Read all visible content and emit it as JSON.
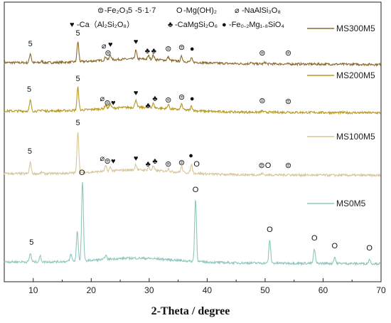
{
  "chart_data": {
    "type": "line",
    "xlabel": "2-Theta / degree",
    "ylabel": "",
    "xlim": [
      5,
      70
    ],
    "x_ticks": [
      10,
      20,
      30,
      40,
      50,
      60,
      70
    ],
    "grid": false,
    "phase_key": [
      {
        "symbol": "⊜",
        "label": "-Fe₂O₃"
      },
      {
        "symbol": "5",
        "label": "-5·1·7"
      },
      {
        "symbol": "O",
        "label": "-Mg(OH)₂"
      },
      {
        "symbol": "⌀",
        "label": "-NaAlSi₃O₈"
      },
      {
        "symbol": "♥",
        "label": "-Ca（Al₂Si₂O₈）"
      },
      {
        "symbol": "♣",
        "label": "-CaMgSi₂O₆"
      },
      {
        "symbol": "●",
        "label": "-Fe₀.₂Mg₁.₈SiO₄"
      }
    ],
    "series": [
      {
        "name": "MS300M5",
        "color": "#8b6a2b",
        "baseline": 88,
        "peaks": [
          [
            9.5,
            13
          ],
          [
            11.5,
            2
          ],
          [
            17.7,
            28
          ],
          [
            22.5,
            5
          ],
          [
            23.3,
            7
          ],
          [
            27.7,
            12
          ],
          [
            29.9,
            5
          ],
          [
            30.7,
            6
          ],
          [
            33.3,
            5
          ],
          [
            35.6,
            7
          ],
          [
            37.3,
            5
          ],
          [
            47.5,
            2
          ],
          [
            50,
            2
          ]
        ]
      },
      {
        "name": "MS200M5",
        "color": "#b69a22",
        "baseline": 156,
        "peaks": [
          [
            9.5,
            15
          ],
          [
            11.5,
            2
          ],
          [
            17.7,
            32
          ],
          [
            22.5,
            5
          ],
          [
            23.3,
            6
          ],
          [
            27.7,
            11
          ],
          [
            29.9,
            4
          ],
          [
            30.7,
            6
          ],
          [
            33.3,
            6
          ],
          [
            35.6,
            8
          ],
          [
            37.3,
            6
          ],
          [
            49.5,
            2
          ],
          [
            54,
            1
          ]
        ]
      },
      {
        "name": "MS100M5",
        "color": "#d8c69a",
        "baseline": 244,
        "peaks": [
          [
            9.5,
            16
          ],
          [
            11.5,
            2
          ],
          [
            17.7,
            58
          ],
          [
            22.5,
            7
          ],
          [
            23.3,
            5
          ],
          [
            27.7,
            8
          ],
          [
            29.9,
            4
          ],
          [
            30.7,
            6
          ],
          [
            33.3,
            4
          ],
          [
            35.6,
            8
          ],
          [
            37.3,
            12
          ],
          [
            49.5,
            2
          ],
          [
            54,
            1
          ]
        ]
      },
      {
        "name": "MS0M5",
        "color": "#8fc7bd",
        "baseline": 368,
        "peaks": [
          [
            9.5,
            12
          ],
          [
            11.2,
            8
          ],
          [
            16.5,
            10
          ],
          [
            17.6,
            42
          ],
          [
            18.5,
            112
          ],
          [
            22.5,
            6
          ],
          [
            38,
            88
          ],
          [
            50.8,
            32
          ],
          [
            58.5,
            20
          ],
          [
            62,
            9
          ],
          [
            68,
            6
          ]
        ]
      }
    ],
    "legend": [
      {
        "label": "MS300M5",
        "color": "#8b6a2b"
      },
      {
        "label": "MS200M5",
        "color": "#b69a22"
      },
      {
        "label": "MS100M5",
        "color": "#d8c69a"
      },
      {
        "label": "MS0M5",
        "color": "#8fc7bd"
      }
    ],
    "annotations": [
      {
        "s": "5",
        "x": 9.5,
        "series": "MS300M5",
        "dy": 15
      },
      {
        "s": "5",
        "x": 17.7,
        "series": "MS300M5",
        "dy": 30
      },
      {
        "s": "⌀",
        "x": 22.2,
        "series": "MS300M5",
        "dy": 12
      },
      {
        "s": "♥",
        "x": 23.3,
        "series": "MS300M5",
        "dy": 14
      },
      {
        "s": "⊜",
        "x": 22.9,
        "series": "MS300M5",
        "dy": 2
      },
      {
        "s": "♥",
        "x": 27.7,
        "series": "MS300M5",
        "dy": 18
      },
      {
        "s": "♣",
        "x": 29.7,
        "series": "MS300M5",
        "dy": 5
      },
      {
        "s": "♣",
        "x": 30.8,
        "series": "MS300M5",
        "dy": 5
      },
      {
        "s": "⊜",
        "x": 33.3,
        "series": "MS300M5",
        "dy": 8
      },
      {
        "s": "⊜",
        "x": 35.6,
        "series": "MS300M5",
        "dy": 10
      },
      {
        "s": "●",
        "x": 37.4,
        "series": "MS300M5",
        "dy": 8
      },
      {
        "s": "⊜",
        "x": 49.5,
        "series": "MS300M5",
        "dy": 2
      },
      {
        "s": "⊜",
        "x": 54,
        "series": "MS300M5",
        "dy": 2
      },
      {
        "s": "5",
        "x": 9.3,
        "series": "MS200M5",
        "dy": 19
      },
      {
        "s": "5",
        "x": 17.7,
        "series": "MS200M5",
        "dy": 34
      },
      {
        "s": "⌀",
        "x": 21.9,
        "series": "MS200M5",
        "dy": 6
      },
      {
        "s": "⊜",
        "x": 22.8,
        "series": "MS200M5",
        "dy": 0
      },
      {
        "s": "♥",
        "x": 23.8,
        "series": "MS200M5",
        "dy": 0
      },
      {
        "s": "♥",
        "x": 27.7,
        "series": "MS200M5",
        "dy": 14
      },
      {
        "s": "♣",
        "x": 29.8,
        "series": "MS200M5",
        "dy": -4
      },
      {
        "s": "♣",
        "x": 31.0,
        "series": "MS200M5",
        "dy": 6
      },
      {
        "s": "⊜",
        "x": 33.3,
        "series": "MS200M5",
        "dy": 4
      },
      {
        "s": "⊜",
        "x": 35.6,
        "series": "MS200M5",
        "dy": 8
      },
      {
        "s": "●",
        "x": 37.4,
        "series": "MS200M5",
        "dy": 6
      },
      {
        "s": "⊜",
        "x": 49.5,
        "series": "MS200M5",
        "dy": 3
      },
      {
        "s": "⊜",
        "x": 54,
        "series": "MS200M5",
        "dy": 2
      },
      {
        "s": "5",
        "x": 9.4,
        "series": "MS100M5",
        "dy": 20
      },
      {
        "s": "5",
        "x": 17.7,
        "series": "MS100M5",
        "dy": 60
      },
      {
        "s": "⌀",
        "x": 21.9,
        "series": "MS100M5",
        "dy": 10
      },
      {
        "s": "⊜",
        "x": 22.8,
        "series": "MS100M5",
        "dy": 6
      },
      {
        "s": "♥",
        "x": 23.8,
        "series": "MS100M5",
        "dy": 6
      },
      {
        "s": "♥",
        "x": 27.7,
        "series": "MS100M5",
        "dy": 10
      },
      {
        "s": "♣",
        "x": 29.8,
        "series": "MS100M5",
        "dy": 2
      },
      {
        "s": "♣",
        "x": 31.0,
        "series": "MS100M5",
        "dy": 6
      },
      {
        "s": "⊜",
        "x": 33.3,
        "series": "MS100M5",
        "dy": 2
      },
      {
        "s": "⊜",
        "x": 35.6,
        "series": "MS100M5",
        "dy": 4
      },
      {
        "s": "●",
        "x": 37.2,
        "series": "MS100M5",
        "dy": 14
      },
      {
        "s": "O",
        "x": 38.2,
        "series": "MS100M5",
        "dy": 2
      },
      {
        "s": "⊜",
        "x": 49.4,
        "series": "MS100M5",
        "dy": 0
      },
      {
        "s": "O",
        "x": 50.5,
        "series": "MS100M5",
        "dy": 0
      },
      {
        "s": "⊜",
        "x": 54,
        "series": "MS100M5",
        "dy": 0
      },
      {
        "s": "5",
        "x": 9.7,
        "series": "MS0M5",
        "dy": 16
      },
      {
        "s": "O",
        "x": 18.4,
        "series": "MS0M5",
        "dy": 114
      },
      {
        "s": "O",
        "x": 38,
        "series": "MS0M5",
        "dy": 90
      },
      {
        "s": "O",
        "x": 50.8,
        "series": "MS0M5",
        "dy": 34
      },
      {
        "s": "O",
        "x": 58.5,
        "series": "MS0M5",
        "dy": 22
      },
      {
        "s": "O",
        "x": 62,
        "series": "MS0M5",
        "dy": 11
      },
      {
        "s": "O",
        "x": 68,
        "series": "MS0M5",
        "dy": 8
      }
    ]
  }
}
